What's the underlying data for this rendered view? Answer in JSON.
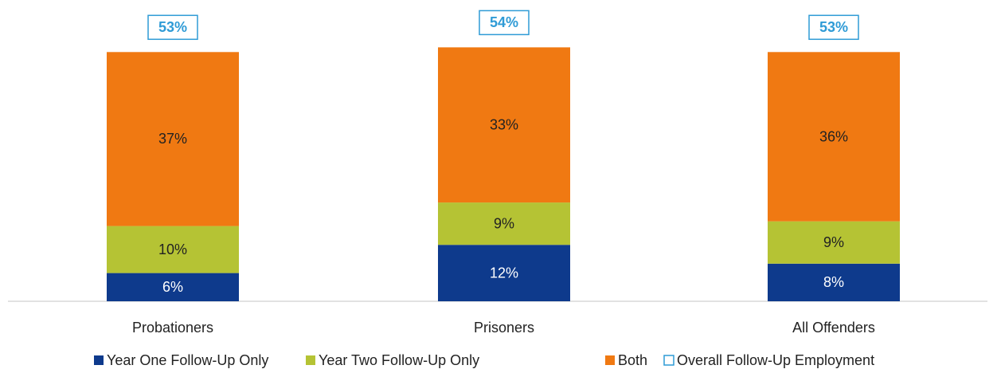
{
  "chart_data": {
    "type": "stacked_bar",
    "categories": [
      "Probationers",
      "Prisoners",
      "All Offenders"
    ],
    "series": [
      {
        "name": "Year One Follow-Up Only",
        "color": "#0e3a8c",
        "values": [
          6,
          12,
          8
        ],
        "value_labels": [
          "6%",
          "12%",
          "8%"
        ]
      },
      {
        "name": "Year Two Follow-Up Only",
        "color": "#b5c334",
        "values": [
          10,
          9,
          9
        ],
        "value_labels": [
          "10%",
          "9%",
          "9%"
        ]
      },
      {
        "name": "Both",
        "color": "#f07912",
        "values": [
          37,
          33,
          36
        ],
        "value_labels": [
          "37%",
          "33%",
          "36%"
        ]
      },
      {
        "name": "Overall Follow-Up Employment",
        "color": "#2f9bd6",
        "total": true,
        "values": [
          53,
          54,
          53
        ],
        "value_labels": [
          "53%",
          "54%",
          "53%"
        ]
      }
    ],
    "legend": "bottom"
  }
}
